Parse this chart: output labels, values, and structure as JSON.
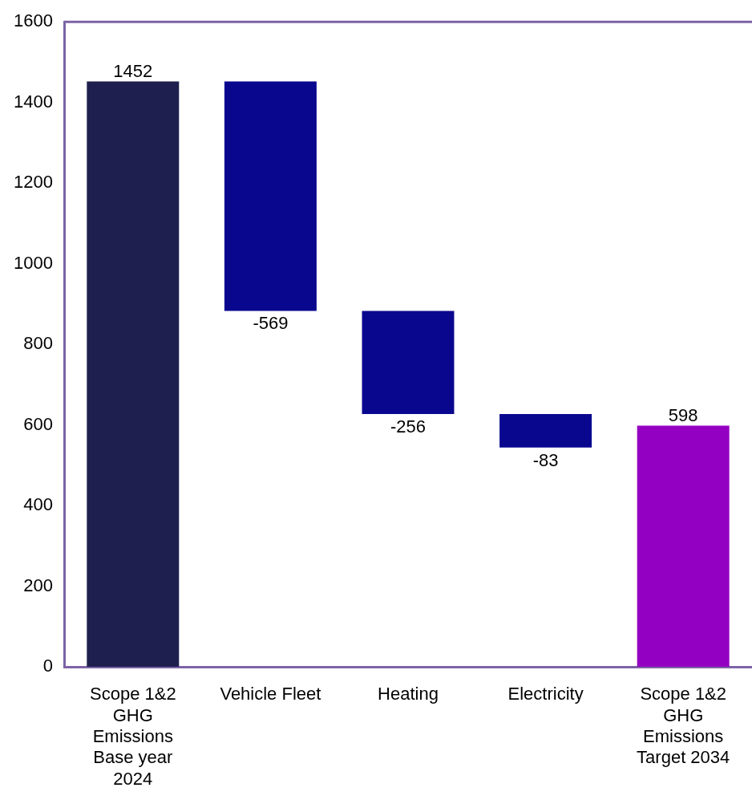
{
  "chart_data": {
    "type": "bar",
    "categories": [
      "Scope 1&2\nGHG\nEmissions\nBase year\n2024",
      "Vehicle Fleet",
      "Heating",
      "Electricity",
      "Scope 1&2\nGHG\nEmissions\nTarget 2034"
    ],
    "values": [
      1452,
      -569,
      -256,
      -83,
      598
    ],
    "base": [
      0,
      1452,
      883,
      627,
      0
    ],
    "colors": [
      "#1e1f4e",
      "#0a078f",
      "#0a078f",
      "#0a078f",
      "#9400c2"
    ],
    "ylim": [
      0,
      1600
    ],
    "yticks": [
      0,
      200,
      400,
      600,
      800,
      1000,
      1200,
      1400,
      1600
    ],
    "grid": false,
    "legend": false,
    "data_labels": true
  }
}
